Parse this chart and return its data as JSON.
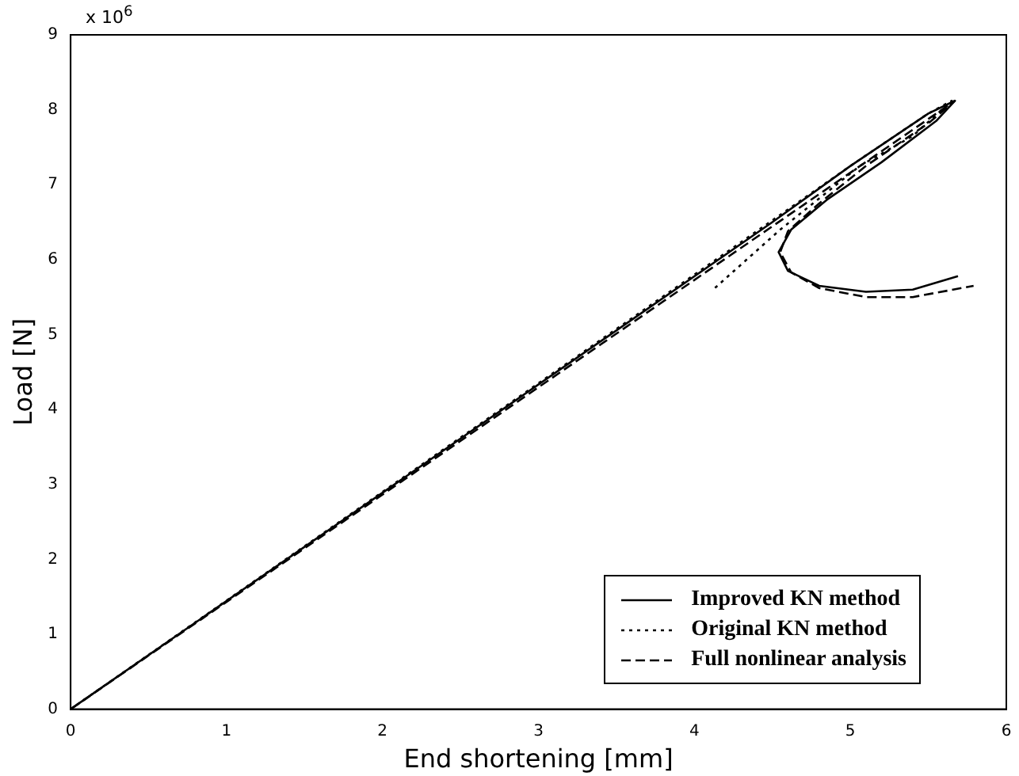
{
  "chart_data": {
    "type": "line",
    "xlabel": "End shortening [mm]",
    "ylabel": "Load [N]",
    "annotations": [
      "x 10$^{6}$"
    ],
    "xlim": [
      0,
      6
    ],
    "xticks": [
      0,
      1,
      2,
      3,
      4,
      5,
      6
    ],
    "ylim": [
      0,
      9
    ],
    "yticks": [
      0,
      1,
      2,
      3,
      4,
      5,
      6,
      7,
      8,
      9
    ],
    "grid": false,
    "legend": "bottom right",
    "marker": "none",
    "series": [
      {
        "name": "Improved KN method",
        "color": "#000000",
        "line_style": "solid",
        "x": [
          0,
          4.5,
          5.0,
          5.5,
          5.67,
          5.55,
          5.2,
          4.85,
          4.62,
          4.54,
          4.6,
          4.8,
          5.1,
          5.4,
          5.69
        ],
        "values": [
          0,
          6.5,
          7.25,
          7.95,
          8.12,
          7.85,
          7.3,
          6.8,
          6.4,
          6.1,
          5.85,
          5.65,
          5.57,
          5.6,
          5.78
        ]
      },
      {
        "name": "Original KN method",
        "color": "#000000",
        "line_style": "dotted",
        "x": [
          0,
          5.0,
          5.5,
          5.65,
          5.4,
          5.06,
          4.55,
          4.12
        ],
        "values": [
          0,
          7.25,
          7.95,
          8.12,
          7.65,
          7.25,
          6.4,
          5.6
        ]
      },
      {
        "name": "Full nonlinear analysis",
        "color": "#000000",
        "line_style": "dashed",
        "x": [
          0,
          5.67,
          5.5,
          5.1,
          4.8,
          4.6,
          4.55,
          4.62,
          4.8,
          5.1,
          5.4,
          5.79
        ],
        "values": [
          0,
          8.12,
          7.82,
          7.25,
          6.75,
          6.38,
          6.1,
          5.83,
          5.62,
          5.5,
          5.5,
          5.65
        ]
      }
    ]
  }
}
